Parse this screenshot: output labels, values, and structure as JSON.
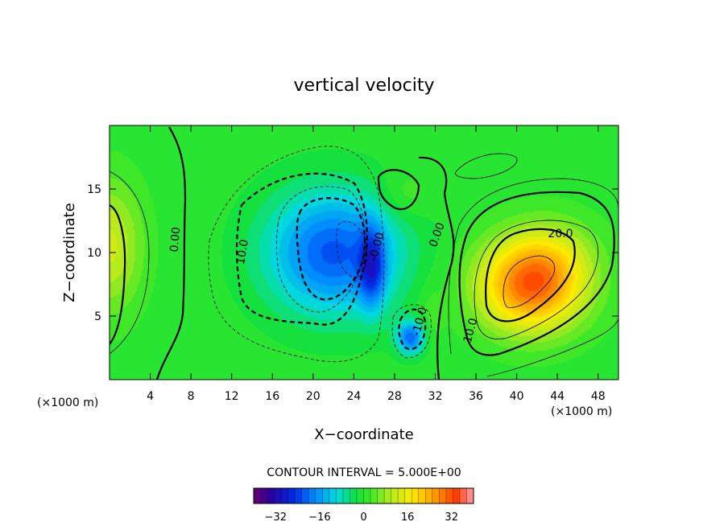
{
  "chart_data": {
    "type": "contour",
    "title": "vertical velocity",
    "xlabel": "X−coordinate",
    "ylabel": "Z−coordinate",
    "x_unit": "(×1000 m)",
    "y_unit": "(×1000 m)",
    "xlim": [
      0,
      50
    ],
    "ylim": [
      0,
      20
    ],
    "x_ticks": [
      4,
      8,
      12,
      16,
      20,
      24,
      28,
      32,
      36,
      40,
      44,
      48
    ],
    "y_ticks": [
      5,
      10,
      15
    ],
    "contour_interval_text": "CONTOUR INTERVAL = 5.000E+00",
    "contour_interval": 5.0,
    "contour_labels": [
      {
        "text": "0.00",
        "x": 6.8,
        "z": 11.0,
        "angle": -85
      },
      {
        "text": "10.0",
        "x": 13.4,
        "z": 10.0,
        "angle": -80
      },
      {
        "text": "-0.00",
        "x": 26.6,
        "z": 10.4,
        "angle": -75
      },
      {
        "text": "0.00",
        "x": 32.5,
        "z": 11.3,
        "angle": -70
      },
      {
        "text": "20.0",
        "x": 44.3,
        "z": 11.2,
        "angle": 0
      },
      {
        "text": "10.0",
        "x": 35.8,
        "z": 3.8,
        "angle": -75
      },
      {
        "text": "-10.0",
        "x": 30.8,
        "z": 4.5,
        "angle": -75
      }
    ],
    "features": [
      {
        "name": "downdraft_main",
        "x": 25.8,
        "z": 8.7,
        "value": -36
      },
      {
        "name": "downdraft_lower",
        "x": 29.6,
        "z": 3.3,
        "value": -26
      },
      {
        "name": "updraft_main",
        "x": 41.4,
        "z": 7.4,
        "value": 30
      },
      {
        "name": "left_boundary_positive",
        "x": 0.5,
        "z": 10.5,
        "value": 12
      }
    ],
    "colorbar": {
      "min": -40,
      "max": 40,
      "ticks": [
        -32,
        -16,
        0,
        16,
        32
      ],
      "tick_labels": [
        "−32",
        "−16",
        "0",
        "16",
        "32"
      ]
    }
  }
}
